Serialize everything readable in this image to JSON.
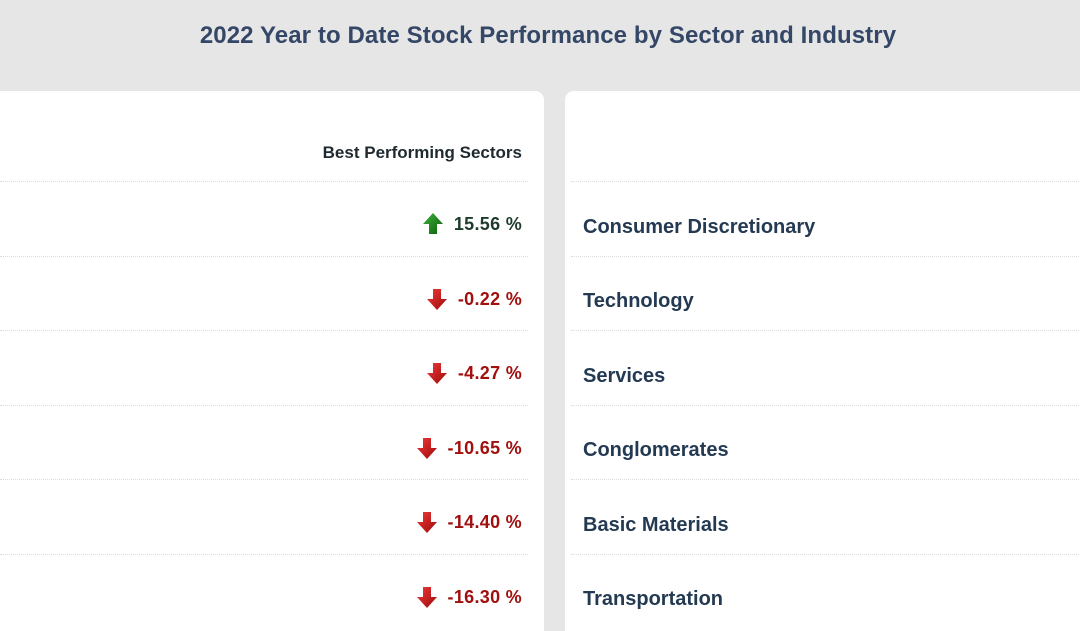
{
  "page": {
    "title": "2022 Year to Date Stock Performance by Sector and Industry"
  },
  "table": {
    "column_header": "Best Performing Sectors",
    "rows": [
      {
        "sector": "Consumer Discretionary",
        "value": "15.56 %",
        "direction": "up"
      },
      {
        "sector": "Technology",
        "value": "-0.22 %",
        "direction": "down"
      },
      {
        "sector": "Services",
        "value": "-4.27 %",
        "direction": "down"
      },
      {
        "sector": "Conglomerates",
        "value": "-10.65 %",
        "direction": "down"
      },
      {
        "sector": "Basic Materials",
        "value": "-14.40 %",
        "direction": "down"
      },
      {
        "sector": "Transportation",
        "value": "-16.30 %",
        "direction": "down"
      }
    ]
  },
  "icons": {
    "up": "arrow-up-icon",
    "down": "arrow-down-icon"
  },
  "colors": {
    "title": "#354766",
    "positive_arrow": "#1a7a1a",
    "negative_arrow": "#c8121a",
    "negative_text": "#a10f0f",
    "positive_text": "#1f3b2c",
    "sector_text": "#243a52",
    "background": "#e6e6e6"
  }
}
